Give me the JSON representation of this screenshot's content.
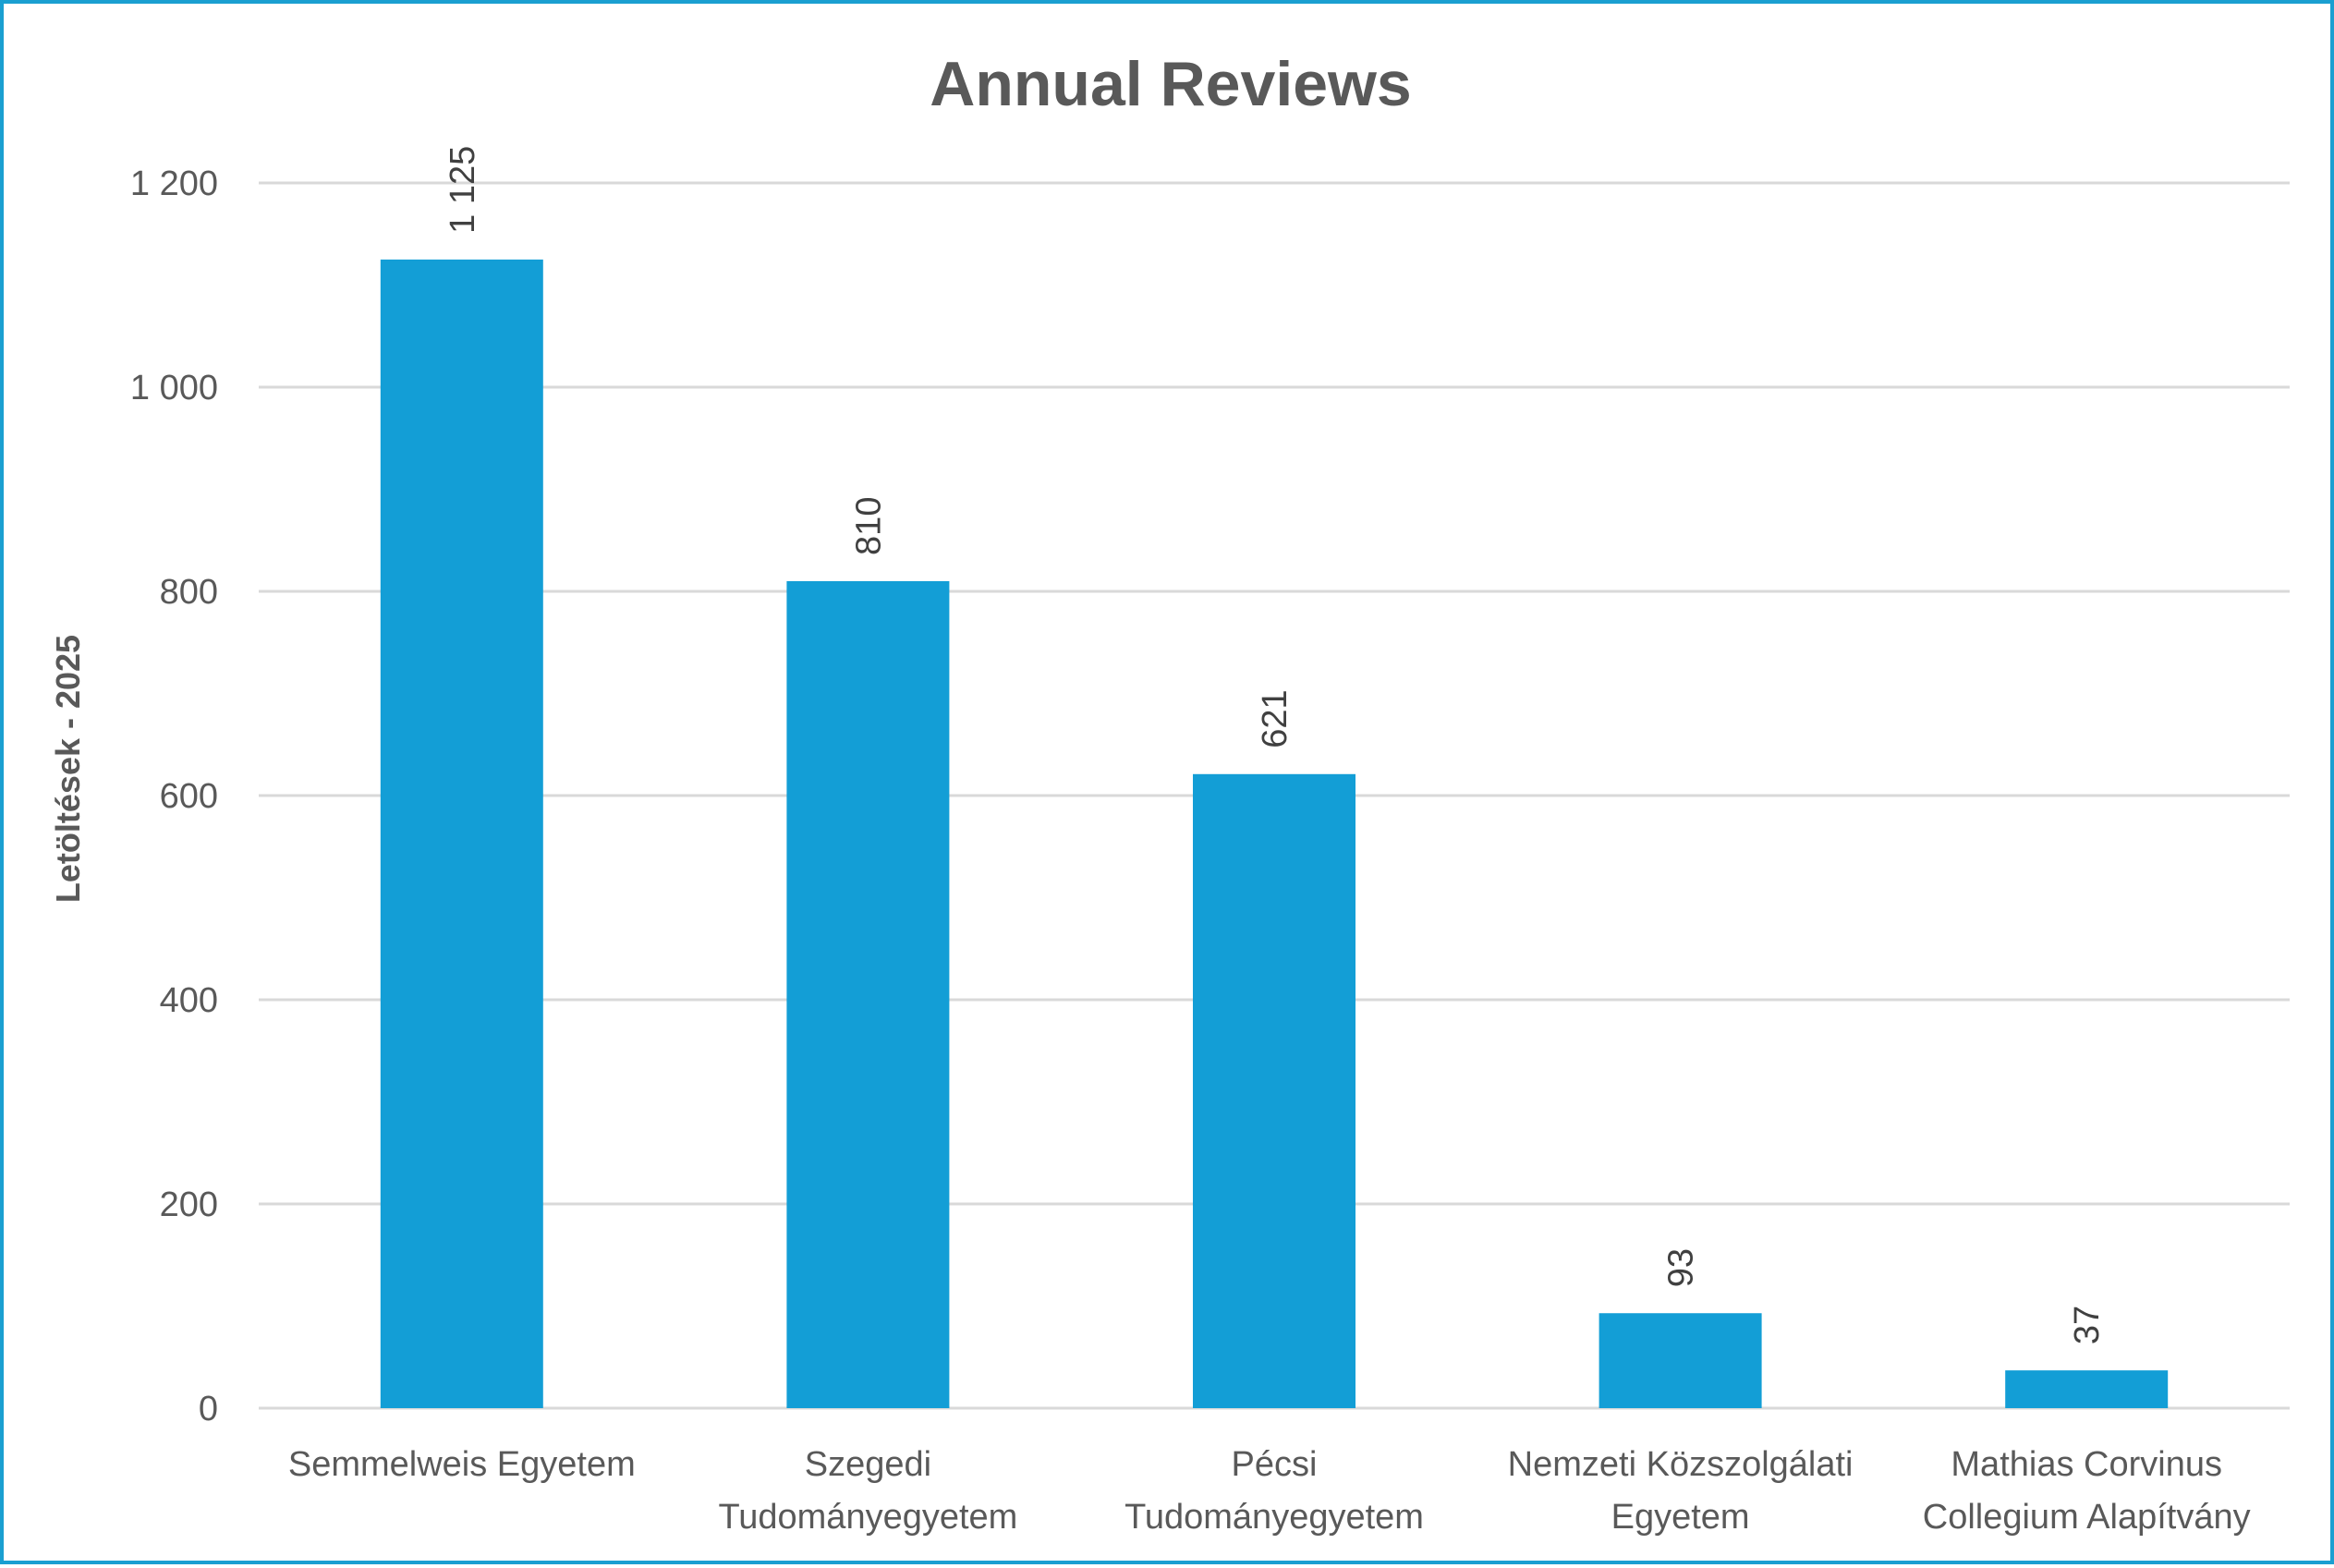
{
  "chart_data": {
    "type": "bar",
    "title": "Annual Reviews",
    "xlabel": "",
    "ylabel": "Letöltések - 2025",
    "categories": [
      [
        "Semmelweis Egyetem"
      ],
      [
        "Szegedi",
        "Tudományegyetem"
      ],
      [
        "Pécsi",
        "Tudományegyetem"
      ],
      [
        "Nemzeti Közszolgálati",
        "Egyetem"
      ],
      [
        "Mathias Corvinus",
        "Collegium Alapítvány"
      ]
    ],
    "values": [
      1125,
      810,
      621,
      93,
      37
    ],
    "value_labels": [
      "1 125",
      "810",
      "621",
      "93",
      "37"
    ],
    "yticks": [
      0,
      200,
      400,
      600,
      800,
      1000,
      1200
    ],
    "ytick_labels": [
      "0",
      "200",
      "400",
      "600",
      "800",
      "1 000",
      "1 200"
    ],
    "ylim": [
      0,
      1200
    ],
    "grid": true,
    "bar_color": "#139ed6",
    "grid_color": "#d9d9d9",
    "frame_color": "#1a9fd1"
  }
}
